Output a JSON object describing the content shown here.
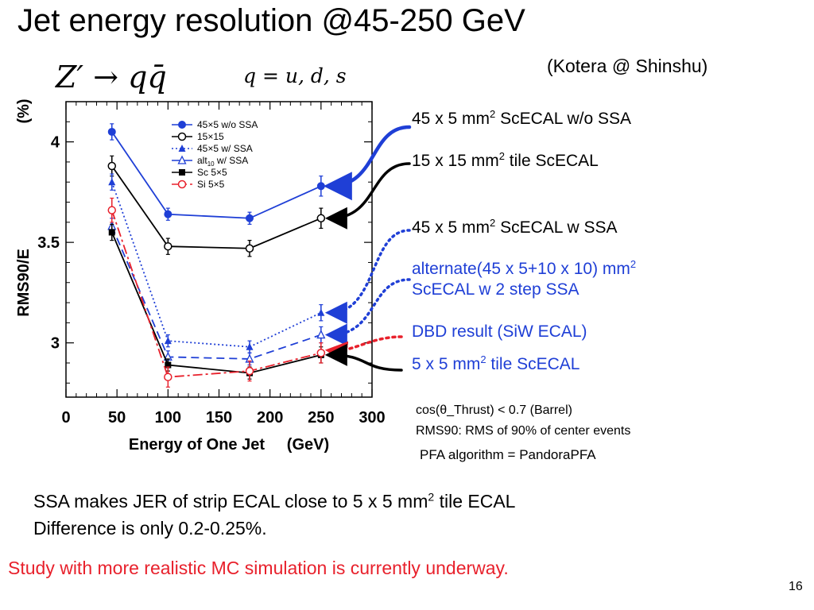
{
  "slide": {
    "title": "Jet energy resolution @45-250 GeV",
    "credit": "(Kotera @ Shinshu)",
    "process_label": "Z′ → qq̄",
    "quark_label": "q = u, d, s",
    "page_number": "16"
  },
  "annotations": [
    {
      "pre": "45 x 5 mm",
      "sup": "2",
      "post": " ScECAL w/o SSA",
      "color": "#000000",
      "target_series": "45×5 w/o SSA"
    },
    {
      "pre": "15 x 15 mm",
      "sup": "2",
      "post": " tile ScECAL",
      "color": "#000000",
      "target_series": "15×15"
    },
    {
      "pre": "45 x 5 mm",
      "sup": "2",
      "post": " ScECAL w SSA",
      "color": "#000000",
      "target_series": "45×5 w/ SSA"
    },
    {
      "line1_pre": "alternate(45 x 5+10 x 10) mm",
      "line1_sup": "2",
      "line2": "ScECAL w 2 step SSA",
      "color": "#1f3fd6",
      "target_series": "alt10 w/ SSA"
    },
    {
      "text": "DBD result (SiW ECAL)",
      "color": "#1f3fd6",
      "target_series": "Si 5×5"
    },
    {
      "pre": "5 x 5 mm",
      "sup": "2",
      "post": " tile ScECAL",
      "color": "#1f3fd6",
      "target_series": "Sc 5×5"
    }
  ],
  "conditions": [
    "cos(θ_Thrust) < 0.7 (Barrel)",
    "RMS90: RMS of 90% of center events",
    "PFA algorithm = PandoraPFA"
  ],
  "conclusion": {
    "line1_pre": "SSA makes JER of strip ECAL close to 5 x 5 mm",
    "line1_sup": "2",
    "line1_post": " tile ECAL",
    "line2": "Difference is only 0.2-0.25%."
  },
  "outlook": "Study with more realistic MC simulation is currently underway.",
  "chart_data": {
    "type": "line",
    "xlabel": "Energy of One Jet     (GeV)",
    "ylabel": "RMS90/E",
    "ylabel_unit": "(%)",
    "xlim": [
      0,
      300
    ],
    "ylim": [
      2.73,
      4.2
    ],
    "xticks": [
      0,
      50,
      100,
      150,
      200,
      250,
      300
    ],
    "yticks": [
      3,
      3.5,
      4
    ],
    "grid": false,
    "legend_position": "top-left",
    "colors": {
      "blue": "#1f3fd6",
      "black": "#000000",
      "red": "#e8212c"
    },
    "series": [
      {
        "name": "45×5 w/o SSA",
        "color": "#1f3fd6",
        "dash": "solid",
        "marker": "filled-circle",
        "x": [
          45,
          100,
          180,
          250
        ],
        "y": [
          4.05,
          3.64,
          3.62,
          3.78
        ],
        "err": [
          0.04,
          0.03,
          0.03,
          0.05
        ]
      },
      {
        "name": "15×15",
        "color": "#000000",
        "dash": "solid",
        "marker": "open-circle",
        "x": [
          45,
          100,
          180,
          250
        ],
        "y": [
          3.88,
          3.48,
          3.47,
          3.62
        ],
        "err": [
          0.05,
          0.04,
          0.04,
          0.05
        ]
      },
      {
        "name": "45×5 w/  SSA",
        "color": "#1f3fd6",
        "dash": "dotted",
        "marker": "filled-triangle",
        "x": [
          45,
          100,
          180,
          250
        ],
        "y": [
          3.8,
          3.01,
          2.98,
          3.15
        ],
        "err": [
          0.04,
          0.03,
          0.03,
          0.04
        ]
      },
      {
        "name_main": "alt",
        "name_sub": "10",
        "name_post": " w/  SSA",
        "color": "#1f3fd6",
        "dash": "dashed",
        "marker": "open-triangle",
        "x": [
          45,
          100,
          180,
          250
        ],
        "y": [
          3.58,
          2.93,
          2.92,
          3.04
        ],
        "err": [
          0.04,
          0.03,
          0.03,
          0.04
        ]
      },
      {
        "name": "Sc 5×5",
        "color": "#000000",
        "dash": "solid",
        "marker": "filled-square",
        "x": [
          45,
          100,
          180,
          250
        ],
        "y": [
          3.55,
          2.89,
          2.85,
          2.94
        ],
        "err": [
          0.04,
          0.03,
          0.03,
          0.04
        ]
      },
      {
        "name": "Si 5×5",
        "color": "#e8212c",
        "dash": "dashdot",
        "marker": "open-circle",
        "x": [
          45,
          100,
          180,
          250
        ],
        "y": [
          3.66,
          2.83,
          2.86,
          2.95
        ],
        "err": [
          0.06,
          0.05,
          0.05,
          0.05
        ]
      }
    ]
  }
}
